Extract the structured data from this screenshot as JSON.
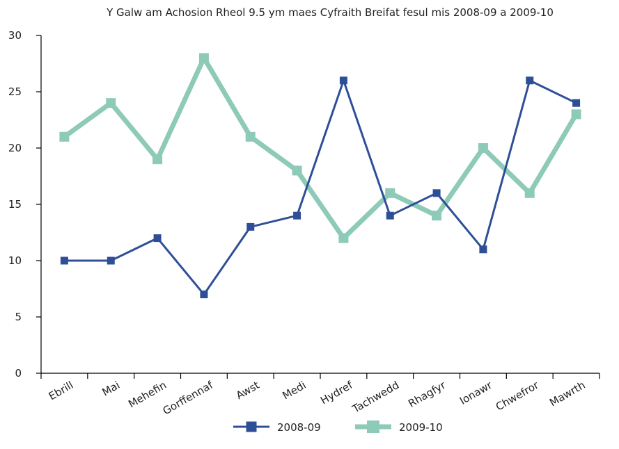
{
  "chart_data": {
    "type": "line",
    "title": "Y Galw am Achosion Rheol 9.5 ym maes Cyfraith Breifat fesul mis 2008-09 a 2009-10",
    "xlabel": "",
    "ylabel": "",
    "categories": [
      "Ebrill",
      "Mai",
      "Mehefin",
      "Gorffennaf",
      "Awst",
      "Medi",
      "Hydref",
      "Tachwedd",
      "Rhagfyr",
      "Ionawr",
      "Chwefror",
      "Mawrth"
    ],
    "ylim": [
      0,
      30
    ],
    "yticks": [
      0,
      5,
      10,
      15,
      20,
      25,
      30
    ],
    "grid": false,
    "legend_position": "bottom",
    "series": [
      {
        "name": "2008-09",
        "color": "#2e4f98",
        "values": [
          10,
          10,
          12,
          7,
          13,
          14,
          26,
          14,
          16,
          11,
          26,
          24
        ]
      },
      {
        "name": "2009-10",
        "color": "#8ecab8",
        "values": [
          21,
          24,
          19,
          28,
          21,
          18,
          12,
          16,
          14,
          20,
          16,
          23
        ]
      }
    ]
  }
}
